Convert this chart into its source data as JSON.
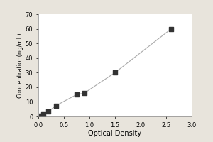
{
  "x_data": [
    0.05,
    0.1,
    0.2,
    0.35,
    0.75,
    0.9,
    1.5,
    2.6
  ],
  "y_data": [
    0.5,
    1.5,
    3.5,
    7.5,
    15,
    16,
    30,
    60
  ],
  "line_color": "#aaaaaa",
  "marker_color": "#333333",
  "xlabel": "Optical Density",
  "ylabel": "Concentration(ng/mL)",
  "xlim": [
    0,
    3
  ],
  "ylim": [
    0,
    70
  ],
  "xticks": [
    0,
    0.5,
    1,
    1.5,
    2,
    2.5,
    3
  ],
  "yticks": [
    0,
    10,
    20,
    30,
    40,
    50,
    60,
    70
  ],
  "bg_color": "#e8e4dc",
  "plot_bg_color": "#ffffff",
  "marker_size": 18,
  "line_width": 0.8,
  "xlabel_fontsize": 7,
  "ylabel_fontsize": 6,
  "tick_fontsize": 6
}
